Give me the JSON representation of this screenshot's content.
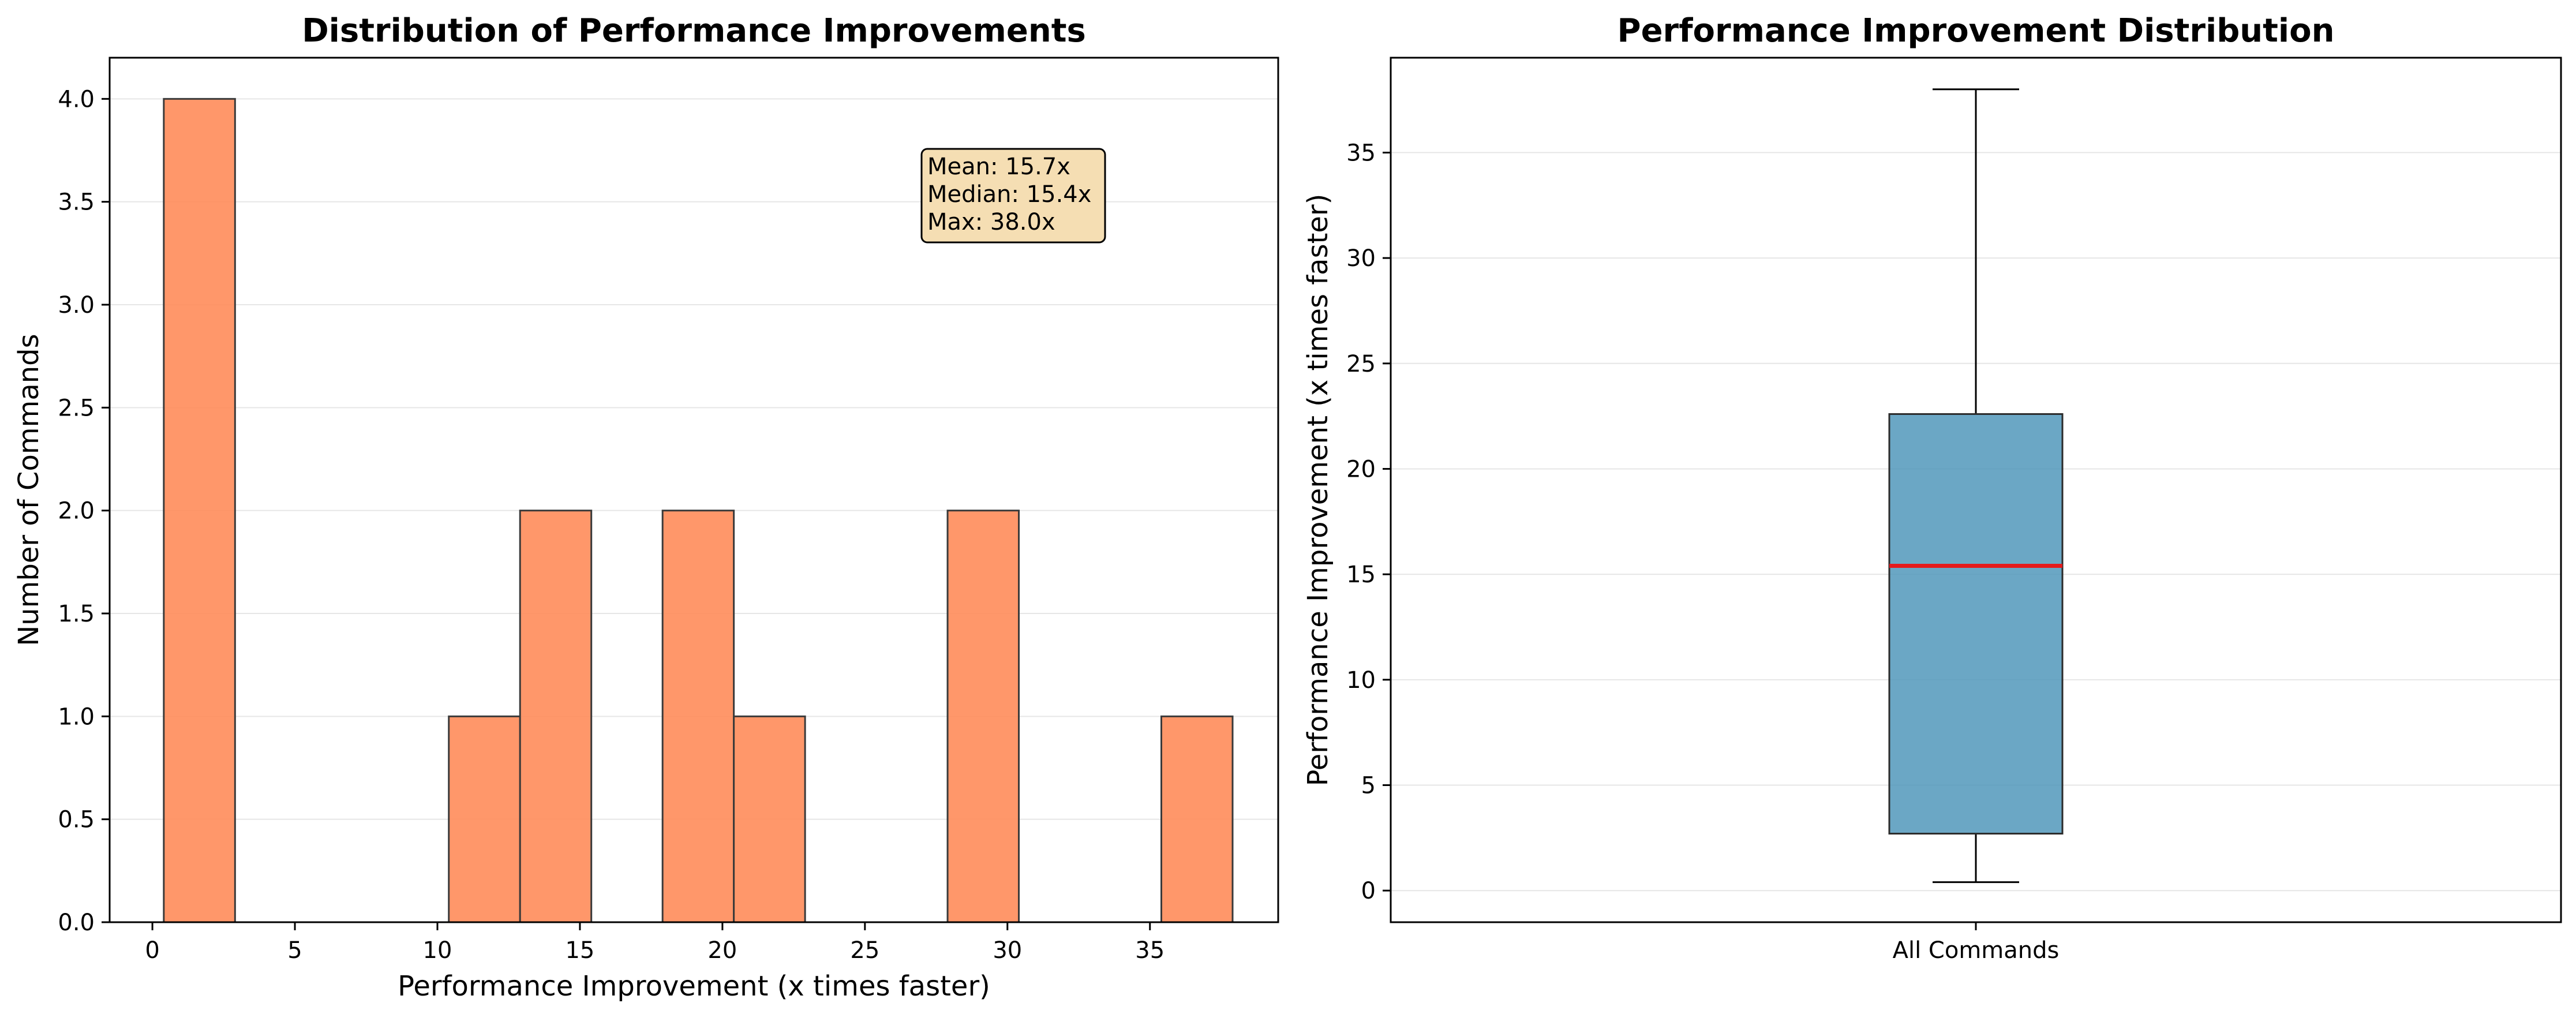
{
  "chart_data": [
    {
      "type": "bar",
      "subtype": "histogram",
      "title": "Distribution of Performance Improvements",
      "xlabel": "Performance Improvement (x times faster)",
      "ylabel": "Number of Commands",
      "xlim": [
        -1.5,
        39.5
      ],
      "ylim": [
        0,
        4.2
      ],
      "xticks": [
        0,
        5,
        10,
        15,
        20,
        25,
        30,
        35
      ],
      "yticks": [
        0.0,
        0.5,
        1.0,
        1.5,
        2.0,
        2.5,
        3.0,
        3.5,
        4.0
      ],
      "ytick_labels": [
        "0.0",
        "0.5",
        "1.0",
        "1.5",
        "2.0",
        "2.5",
        "3.0",
        "3.5",
        "4.0"
      ],
      "bin_edges": [
        0.4,
        2.9,
        5.4,
        7.9,
        10.4,
        12.9,
        15.4,
        17.9,
        20.4,
        22.9,
        25.4,
        27.9,
        30.4,
        32.9,
        35.4,
        37.9
      ],
      "counts": [
        4,
        0,
        0,
        0,
        1,
        2,
        0,
        2,
        1,
        0,
        0,
        2,
        0,
        0,
        1
      ],
      "bar_color": "#ff8c5a",
      "grid": "y",
      "annotation": {
        "lines": [
          "Mean: 15.7x",
          "Median: 15.4x",
          "Max: 38.0x"
        ],
        "box_color": "#f5deb3",
        "placement": "top-right"
      }
    },
    {
      "type": "box",
      "title": "Performance Improvement Distribution",
      "ylabel": "Performance Improvement (x times faster)",
      "category": "All Commands",
      "ylim": [
        -1.5,
        39.5
      ],
      "yticks": [
        0,
        5,
        10,
        15,
        20,
        25,
        30,
        35
      ],
      "stats": {
        "whisker_low": 0.4,
        "q1": 2.7,
        "median": 15.4,
        "q3": 22.6,
        "whisker_high": 38.0
      },
      "box_color": "#4a94b8",
      "median_color": "#e41a1c",
      "grid": "y"
    }
  ]
}
